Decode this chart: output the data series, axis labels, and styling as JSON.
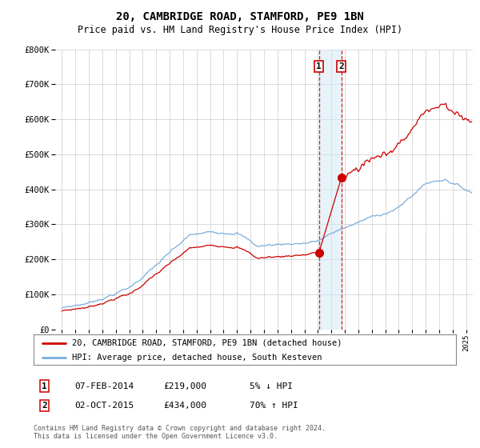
{
  "title": "20, CAMBRIDGE ROAD, STAMFORD, PE9 1BN",
  "subtitle": "Price paid vs. HM Land Registry's House Price Index (HPI)",
  "legend_line1": "20, CAMBRIDGE ROAD, STAMFORD, PE9 1BN (detached house)",
  "legend_line2": "HPI: Average price, detached house, South Kesteven",
  "transaction1_date": "07-FEB-2014",
  "transaction1_price": 219000,
  "transaction1_hpi": "5% ↓ HPI",
  "transaction2_date": "02-OCT-2015",
  "transaction2_price": 434000,
  "transaction2_hpi": "70% ↑ HPI",
  "footnote": "Contains HM Land Registry data © Crown copyright and database right 2024.\nThis data is licensed under the Open Government Licence v3.0.",
  "hpi_color": "#7aaddc",
  "price_color": "#cc0000",
  "t1_year": 2014.08,
  "t2_year": 2015.75,
  "t1_price": 219000,
  "t2_price": 434000,
  "ylim_min": 0,
  "ylim_max": 800000,
  "xlim_min": 1994.5,
  "xlim_max": 2025.5
}
